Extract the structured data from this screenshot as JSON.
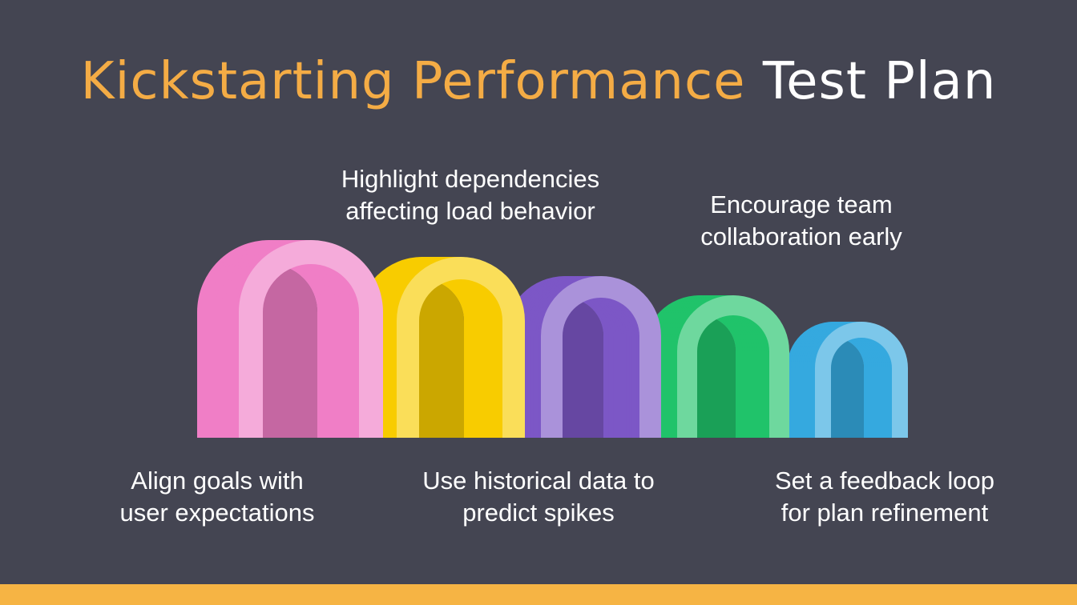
{
  "title": {
    "accent_part": "Kickstarting Performance",
    "main_part": "Test Plan",
    "accent_color": "#F4AC45"
  },
  "steps": [
    {
      "label": "Align goals with\nuser expectations",
      "color": "#F07EC6"
    },
    {
      "label": "Highlight dependencies\naffecting load behavior",
      "color": "#F8CC00"
    },
    {
      "label": "Use historical data to\npredict spikes",
      "color": "#7C57C6"
    },
    {
      "label": "Encourage team\ncollaboration early",
      "color": "#20C36A"
    },
    {
      "label": "Set a feedback loop\nfor plan refinement",
      "color": "#35A9DF"
    }
  ],
  "colors": {
    "background": "#444552",
    "bottom_bar": "#F6B444"
  }
}
